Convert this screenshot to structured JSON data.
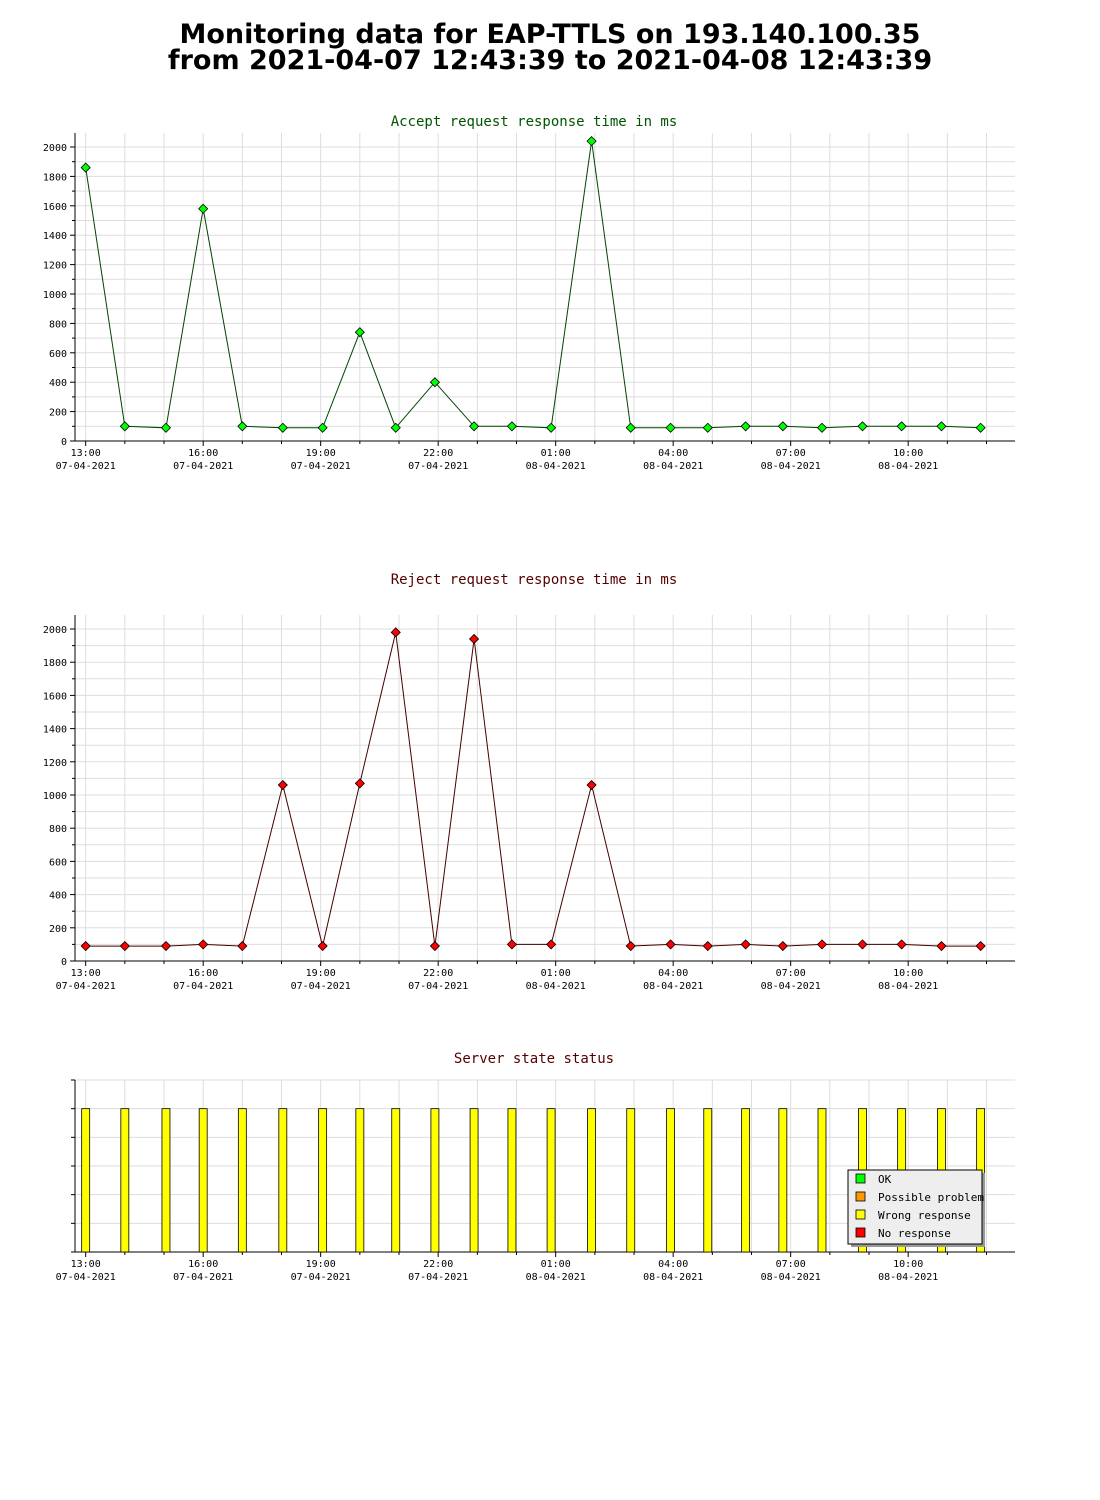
{
  "page": {
    "title_line1": "Monitoring data for EAP-TTLS on 193.140.100.35",
    "title_line2": "from 2021-04-07 12:43:39 to 2021-04-08 12:43:39"
  },
  "colors": {
    "accept_line": "#004400",
    "accept_marker": "#00ff00",
    "reject_line": "#440000",
    "reject_marker": "#ff0000",
    "status_title": "#660000",
    "grid": "#dddddd",
    "ok": "#00ff00",
    "possible_problem": "#ff9900",
    "wrong_response": "#ffff00",
    "no_response": "#ff0000"
  },
  "chart_data": [
    {
      "type": "line",
      "title": "Accept request response time in ms",
      "x_start": "2021-04-07 12:43:39",
      "x_end": "2021-04-08 12:43:39",
      "x": [
        "2021-04-07 13:00",
        "2021-04-07 14:00",
        "2021-04-07 15:03",
        "2021-04-07 16:00",
        "2021-04-07 17:00",
        "2021-04-07 18:02",
        "2021-04-07 19:03",
        "2021-04-07 20:00",
        "2021-04-07 20:55",
        "2021-04-07 21:55",
        "2021-04-07 22:55",
        "2021-04-07 23:53",
        "2021-04-08 00:53",
        "2021-04-08 01:55",
        "2021-04-08 02:55",
        "2021-04-08 03:56",
        "2021-04-08 04:53",
        "2021-04-08 05:51",
        "2021-04-08 06:48",
        "2021-04-08 07:48",
        "2021-04-08 08:50",
        "2021-04-08 09:50",
        "2021-04-08 10:51",
        "2021-04-08 11:51"
      ],
      "values": [
        1860,
        100,
        90,
        1580,
        100,
        90,
        90,
        740,
        90,
        400,
        100,
        100,
        90,
        2040,
        90,
        90,
        90,
        100,
        100,
        90,
        100,
        100,
        100,
        90
      ],
      "ylim": [
        0,
        2000
      ],
      "yticks": [
        0,
        200,
        400,
        600,
        800,
        1000,
        1200,
        1400,
        1600,
        1800,
        2000
      ],
      "xtick_labels": [
        {
          "time": "13:00",
          "date": "07-04-2021"
        },
        {
          "time": "16:00",
          "date": "07-04-2021"
        },
        {
          "time": "19:00",
          "date": "07-04-2021"
        },
        {
          "time": "22:00",
          "date": "07-04-2021"
        },
        {
          "time": "01:00",
          "date": "08-04-2021"
        },
        {
          "time": "04:00",
          "date": "08-04-2021"
        },
        {
          "time": "07:00",
          "date": "08-04-2021"
        },
        {
          "time": "10:00",
          "date": "08-04-2021"
        }
      ],
      "grid": true
    },
    {
      "type": "line",
      "title": "Reject request response time in ms",
      "x_start": "2021-04-07 12:43:39",
      "x_end": "2021-04-08 12:43:39",
      "x": [
        "2021-04-07 13:00",
        "2021-04-07 14:00",
        "2021-04-07 15:03",
        "2021-04-07 16:00",
        "2021-04-07 17:00",
        "2021-04-07 18:02",
        "2021-04-07 19:03",
        "2021-04-07 20:00",
        "2021-04-07 20:55",
        "2021-04-07 21:55",
        "2021-04-07 22:55",
        "2021-04-07 23:53",
        "2021-04-08 00:53",
        "2021-04-08 01:55",
        "2021-04-08 02:55",
        "2021-04-08 03:56",
        "2021-04-08 04:53",
        "2021-04-08 05:51",
        "2021-04-08 06:48",
        "2021-04-08 07:48",
        "2021-04-08 08:50",
        "2021-04-08 09:50",
        "2021-04-08 10:51",
        "2021-04-08 11:51"
      ],
      "values": [
        90,
        90,
        90,
        100,
        90,
        1060,
        90,
        1070,
        1980,
        90,
        1940,
        100,
        100,
        1060,
        90,
        100,
        90,
        100,
        90,
        100,
        100,
        100,
        90,
        90
      ],
      "ylim": [
        0,
        2000
      ],
      "yticks": [
        0,
        200,
        400,
        600,
        800,
        1000,
        1200,
        1400,
        1600,
        1800,
        2000
      ],
      "xtick_labels": [
        {
          "time": "13:00",
          "date": "07-04-2021"
        },
        {
          "time": "16:00",
          "date": "07-04-2021"
        },
        {
          "time": "19:00",
          "date": "07-04-2021"
        },
        {
          "time": "22:00",
          "date": "07-04-2021"
        },
        {
          "time": "01:00",
          "date": "08-04-2021"
        },
        {
          "time": "04:00",
          "date": "08-04-2021"
        },
        {
          "time": "07:00",
          "date": "08-04-2021"
        },
        {
          "time": "10:00",
          "date": "08-04-2021"
        }
      ],
      "grid": true
    },
    {
      "type": "bar",
      "title": "Server state status",
      "x_start": "2021-04-07 12:43:39",
      "x_end": "2021-04-08 12:43:39",
      "x": [
        "2021-04-07 13:00",
        "2021-04-07 14:00",
        "2021-04-07 15:03",
        "2021-04-07 16:00",
        "2021-04-07 17:00",
        "2021-04-07 18:02",
        "2021-04-07 19:03",
        "2021-04-07 20:00",
        "2021-04-07 20:55",
        "2021-04-07 21:55",
        "2021-04-07 22:55",
        "2021-04-07 23:53",
        "2021-04-08 00:53",
        "2021-04-08 01:55",
        "2021-04-08 02:55",
        "2021-04-08 03:56",
        "2021-04-08 04:53",
        "2021-04-08 05:51",
        "2021-04-08 06:48",
        "2021-04-08 07:48",
        "2021-04-08 08:50",
        "2021-04-08 09:50",
        "2021-04-08 10:51",
        "2021-04-08 11:51"
      ],
      "states": [
        "Wrong response",
        "Wrong response",
        "Wrong response",
        "Wrong response",
        "Wrong response",
        "Wrong response",
        "Wrong response",
        "Wrong response",
        "Wrong response",
        "Wrong response",
        "Wrong response",
        "Wrong response",
        "Wrong response",
        "Wrong response",
        "Wrong response",
        "Wrong response",
        "Wrong response",
        "Wrong response",
        "Wrong response",
        "Wrong response",
        "Wrong response",
        "Wrong response",
        "Wrong response",
        "Wrong response"
      ],
      "legend": [
        {
          "label": "OK",
          "color": "#00ff00"
        },
        {
          "label": "Possible problem",
          "color": "#ff9900"
        },
        {
          "label": "Wrong response",
          "color": "#ffff00"
        },
        {
          "label": "No response",
          "color": "#ff0000"
        }
      ],
      "legend_position": "bottom-right",
      "xtick_labels": [
        {
          "time": "13:00",
          "date": "07-04-2021"
        },
        {
          "time": "16:00",
          "date": "07-04-2021"
        },
        {
          "time": "19:00",
          "date": "07-04-2021"
        },
        {
          "time": "22:00",
          "date": "07-04-2021"
        },
        {
          "time": "01:00",
          "date": "08-04-2021"
        },
        {
          "time": "04:00",
          "date": "08-04-2021"
        },
        {
          "time": "07:00",
          "date": "08-04-2021"
        },
        {
          "time": "10:00",
          "date": "08-04-2021"
        }
      ],
      "grid": true
    }
  ]
}
